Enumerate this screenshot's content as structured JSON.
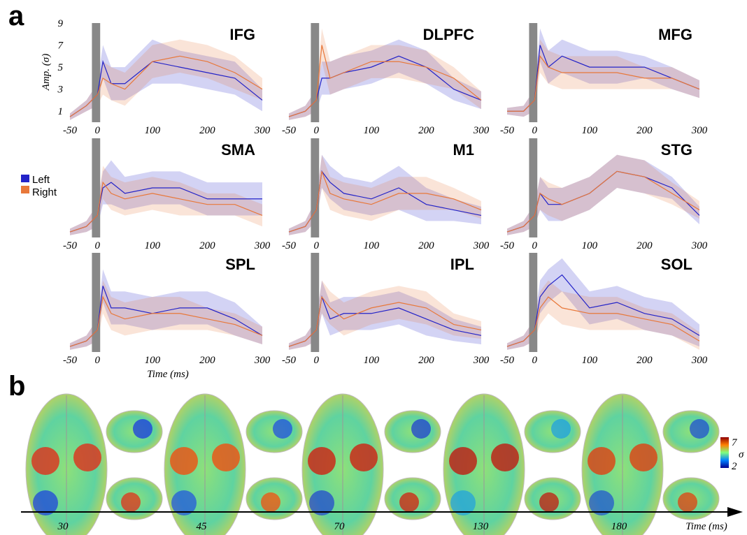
{
  "panel_labels": [
    "a",
    "b"
  ],
  "chart_data": [
    {
      "type": "line",
      "title": "IFG",
      "ylabel": "Amp. (σ)",
      "x": [
        -50,
        -20,
        0,
        10,
        25,
        50,
        100,
        150,
        200,
        250,
        300
      ],
      "xlim": [
        -50,
        300
      ],
      "xticks": [
        -50,
        0,
        100,
        200,
        300
      ],
      "ylim": [
        0,
        9
      ],
      "yticks": [
        1,
        3,
        5,
        7,
        9
      ],
      "shade": [
        -10,
        5
      ],
      "series": [
        {
          "name": "Left",
          "color": "#2323c8",
          "values": [
            0.5,
            1.5,
            2.5,
            5.5,
            3.5,
            3.5,
            5.5,
            5,
            4.5,
            4,
            2
          ],
          "error": [
            0.3,
            0.5,
            1,
            1.5,
            1.5,
            1.5,
            2,
            1.5,
            1.5,
            1.5,
            1
          ]
        },
        {
          "name": "Right",
          "color": "#e8783a",
          "values": [
            0.5,
            1.5,
            2.5,
            4,
            3.5,
            3,
            5.5,
            6,
            5.5,
            4.5,
            3
          ],
          "error": [
            0.3,
            0.5,
            1,
            1.5,
            1.5,
            1.5,
            1.5,
            1.5,
            1.5,
            1.5,
            1
          ]
        }
      ]
    },
    {
      "type": "line",
      "title": "DLPFC",
      "x": [
        -50,
        -20,
        0,
        10,
        25,
        50,
        100,
        150,
        200,
        250,
        300
      ],
      "xlim": [
        -50,
        300
      ],
      "xticks": [
        -50,
        0,
        100,
        200,
        300
      ],
      "ylim": [
        0,
        9
      ],
      "shade": [
        -10,
        5
      ],
      "series": [
        {
          "name": "Left",
          "color": "#2323c8",
          "values": [
            0.5,
            1,
            2,
            4,
            4,
            4.5,
            5,
            6,
            5,
            3,
            2
          ],
          "error": [
            0.3,
            0.5,
            1,
            1.5,
            1.5,
            1.5,
            1.5,
            1.5,
            1.5,
            1,
            0.8
          ]
        },
        {
          "name": "Right",
          "color": "#e8783a",
          "values": [
            0.5,
            1,
            2,
            7,
            4,
            4.5,
            5.5,
            5.5,
            5,
            4,
            2
          ],
          "error": [
            0.3,
            0.5,
            1,
            1.5,
            1.5,
            1.5,
            1.5,
            1.5,
            1.5,
            1,
            0.8
          ]
        }
      ]
    },
    {
      "type": "line",
      "title": "MFG",
      "x": [
        -50,
        -20,
        0,
        10,
        25,
        50,
        100,
        150,
        200,
        250,
        300
      ],
      "xlim": [
        -50,
        300
      ],
      "xticks": [
        -50,
        0,
        100,
        200,
        300
      ],
      "ylim": [
        0,
        9
      ],
      "shade": [
        -10,
        5
      ],
      "series": [
        {
          "name": "Left",
          "color": "#2323c8",
          "values": [
            1,
            1,
            2,
            7,
            5,
            6,
            5,
            5,
            5,
            4,
            3
          ],
          "error": [
            0.3,
            0.5,
            1,
            1.5,
            1.5,
            1.5,
            1.5,
            1.5,
            1,
            1,
            0.8
          ]
        },
        {
          "name": "Right",
          "color": "#e8783a",
          "values": [
            1,
            1,
            2,
            6,
            5,
            4.5,
            4.5,
            4.5,
            4,
            4,
            3
          ],
          "error": [
            0.3,
            0.5,
            1,
            1.5,
            1.5,
            1.5,
            1.5,
            1.5,
            1,
            1,
            0.8
          ]
        }
      ]
    },
    {
      "type": "line",
      "title": "SMA",
      "x": [
        -50,
        -20,
        0,
        10,
        25,
        50,
        100,
        150,
        200,
        250,
        300
      ],
      "xlim": [
        -50,
        300
      ],
      "xticks": [
        -50,
        0,
        100,
        200,
        300
      ],
      "ylim": [
        0,
        9
      ],
      "shade": [
        -10,
        5
      ],
      "series": [
        {
          "name": "Left",
          "color": "#2323c8",
          "values": [
            0.5,
            1,
            2,
            4.5,
            5,
            4,
            4.5,
            4.5,
            3.5,
            3.5,
            3.5
          ],
          "error": [
            0.3,
            0.5,
            1,
            1.5,
            2,
            1.5,
            1.5,
            1.5,
            1.5,
            1.5,
            1.5
          ]
        },
        {
          "name": "Right",
          "color": "#e8783a",
          "values": [
            0.5,
            1,
            2,
            5,
            4,
            3.5,
            4,
            3.5,
            3,
            3,
            2
          ],
          "error": [
            0.3,
            0.5,
            1,
            1.5,
            1.5,
            1.5,
            1.5,
            1.5,
            1,
            1,
            1
          ]
        }
      ]
    },
    {
      "type": "line",
      "title": "M1",
      "x": [
        -50,
        -20,
        0,
        10,
        25,
        50,
        100,
        150,
        200,
        250,
        300
      ],
      "xlim": [
        -50,
        300
      ],
      "xticks": [
        -50,
        0,
        100,
        200,
        300
      ],
      "ylim": [
        0,
        9
      ],
      "shade": [
        -10,
        5
      ],
      "series": [
        {
          "name": "Left",
          "color": "#2323c8",
          "values": [
            0.5,
            1,
            2.5,
            6,
            5,
            4,
            3.5,
            4.5,
            3,
            2.5,
            2
          ],
          "error": [
            0.3,
            0.5,
            1,
            1.5,
            1.5,
            1.5,
            1.5,
            2,
            1.5,
            1,
            0.8
          ]
        },
        {
          "name": "Right",
          "color": "#e8783a",
          "values": [
            0.5,
            1,
            2.5,
            6,
            4,
            3.5,
            3,
            4,
            4,
            3.5,
            2.5
          ],
          "error": [
            0.3,
            0.5,
            1,
            1.5,
            1.5,
            1.5,
            1.5,
            1.5,
            1.5,
            1,
            0.8
          ]
        }
      ]
    },
    {
      "type": "line",
      "title": "STG",
      "x": [
        -50,
        -20,
        0,
        10,
        25,
        50,
        100,
        150,
        200,
        250,
        300
      ],
      "xlim": [
        -50,
        300
      ],
      "xticks": [
        -50,
        0,
        100,
        200,
        300
      ],
      "ylim": [
        0,
        9
      ],
      "shade": [
        -10,
        5
      ],
      "series": [
        {
          "name": "Left",
          "color": "#2323c8",
          "values": [
            0.5,
            1,
            2,
            4,
            3,
            3,
            4,
            6,
            5.5,
            4.5,
            2
          ],
          "error": [
            0.3,
            0.5,
            1,
            1.5,
            1.5,
            1.5,
            1.5,
            1.5,
            1.5,
            1,
            0.8
          ]
        },
        {
          "name": "Right",
          "color": "#e8783a",
          "values": [
            0.5,
            1,
            2,
            4,
            3.5,
            3,
            4,
            6,
            5.5,
            4,
            2.5
          ],
          "error": [
            0.3,
            0.5,
            1,
            1.5,
            1.5,
            1.5,
            1.5,
            1.5,
            1.5,
            1,
            0.8
          ]
        }
      ]
    },
    {
      "type": "line",
      "title": "SPL",
      "xlabel": "Time (ms)",
      "x": [
        -50,
        -20,
        0,
        10,
        25,
        50,
        100,
        150,
        200,
        250,
        300
      ],
      "xlim": [
        -50,
        300
      ],
      "xticks": [
        -50,
        0,
        100,
        200,
        300
      ],
      "ylim": [
        0,
        9
      ],
      "shade": [
        -10,
        5
      ],
      "series": [
        {
          "name": "Left",
          "color": "#2323c8",
          "values": [
            0.5,
            1,
            2,
            6,
            4,
            4,
            3.5,
            4,
            4,
            3,
            1.5
          ],
          "error": [
            0.3,
            0.5,
            1,
            1.5,
            1.5,
            1.5,
            1.5,
            1.5,
            1.5,
            1.5,
            0.8
          ]
        },
        {
          "name": "Right",
          "color": "#e8783a",
          "values": [
            0.5,
            1,
            2,
            5,
            3.5,
            3,
            3.5,
            3.5,
            3,
            2.5,
            1.5
          ],
          "error": [
            0.3,
            0.5,
            1,
            1.5,
            1.5,
            1.5,
            1.5,
            1.5,
            1,
            1,
            0.8
          ]
        }
      ]
    },
    {
      "type": "line",
      "title": "IPL",
      "x": [
        -50,
        -20,
        0,
        10,
        25,
        50,
        100,
        150,
        200,
        250,
        300
      ],
      "xlim": [
        -50,
        300
      ],
      "xticks": [
        -50,
        0,
        100,
        200,
        300
      ],
      "ylim": [
        0,
        9
      ],
      "shade": [
        -10,
        5
      ],
      "series": [
        {
          "name": "Left",
          "color": "#2323c8",
          "values": [
            0.5,
            1,
            2,
            5,
            3,
            3.5,
            3.5,
            4,
            3,
            2,
            1.5
          ],
          "error": [
            0.3,
            0.5,
            1,
            1.5,
            1.5,
            1.5,
            1.5,
            1.5,
            1.5,
            1,
            0.8
          ]
        },
        {
          "name": "Right",
          "color": "#e8783a",
          "values": [
            0.5,
            1,
            2,
            5,
            4,
            3,
            4,
            4.5,
            4,
            2.5,
            2
          ],
          "error": [
            0.3,
            0.5,
            1,
            1.5,
            1.5,
            1.5,
            1.5,
            1.5,
            1.5,
            1,
            0.8
          ]
        }
      ]
    },
    {
      "type": "line",
      "title": "SOL",
      "x": [
        -50,
        -20,
        0,
        10,
        25,
        50,
        100,
        150,
        200,
        250,
        300
      ],
      "xlim": [
        -50,
        300
      ],
      "xticks": [
        -50,
        0,
        100,
        200,
        300
      ],
      "ylim": [
        0,
        9
      ],
      "shade": [
        -10,
        5
      ],
      "series": [
        {
          "name": "Left",
          "color": "#2323c8",
          "values": [
            0.5,
            1,
            2,
            5,
            6,
            7,
            4,
            4.5,
            3.5,
            3,
            1.5
          ],
          "error": [
            0.3,
            0.5,
            1,
            1.5,
            1.5,
            1.5,
            1.5,
            1.5,
            1.5,
            1.5,
            1
          ]
        },
        {
          "name": "Right",
          "color": "#e8783a",
          "values": [
            0.5,
            1,
            2,
            4,
            5,
            4,
            3.5,
            3.5,
            3,
            2.5,
            1
          ],
          "error": [
            0.3,
            0.5,
            1,
            1.5,
            1.5,
            1.5,
            1.5,
            1.5,
            1,
            1,
            0.8
          ]
        }
      ]
    }
  ],
  "brain_map": {
    "times": [
      30,
      45,
      70,
      130,
      180
    ],
    "xlabel": "Time (ms)",
    "colorbar": {
      "ticks": [
        7,
        2
      ],
      "label": "σ"
    }
  }
}
